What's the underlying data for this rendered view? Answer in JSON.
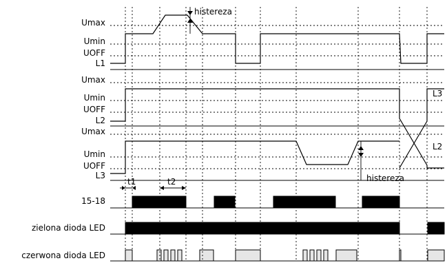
{
  "labels": {
    "umax_1": "Umax",
    "umin_1": "Umin",
    "uoff_1": "UOFF",
    "l1": "L1",
    "umax_2": "Umax",
    "umin_2": "Umin",
    "uoff_2": "UOFF",
    "l2": "L2",
    "umax_3": "Umax",
    "umin_3": "Umin",
    "uoff_3": "UOFF",
    "l3": "L3",
    "histereza_top": "histereza",
    "histereza_bottom": "histereza",
    "t1": "t1",
    "t2": "t2",
    "relay": "15-18",
    "green_led": "zielona dioda LED",
    "red_led": "czerwona dioda LED",
    "trace_l3": "L3",
    "trace_l2": "L2"
  }
}
